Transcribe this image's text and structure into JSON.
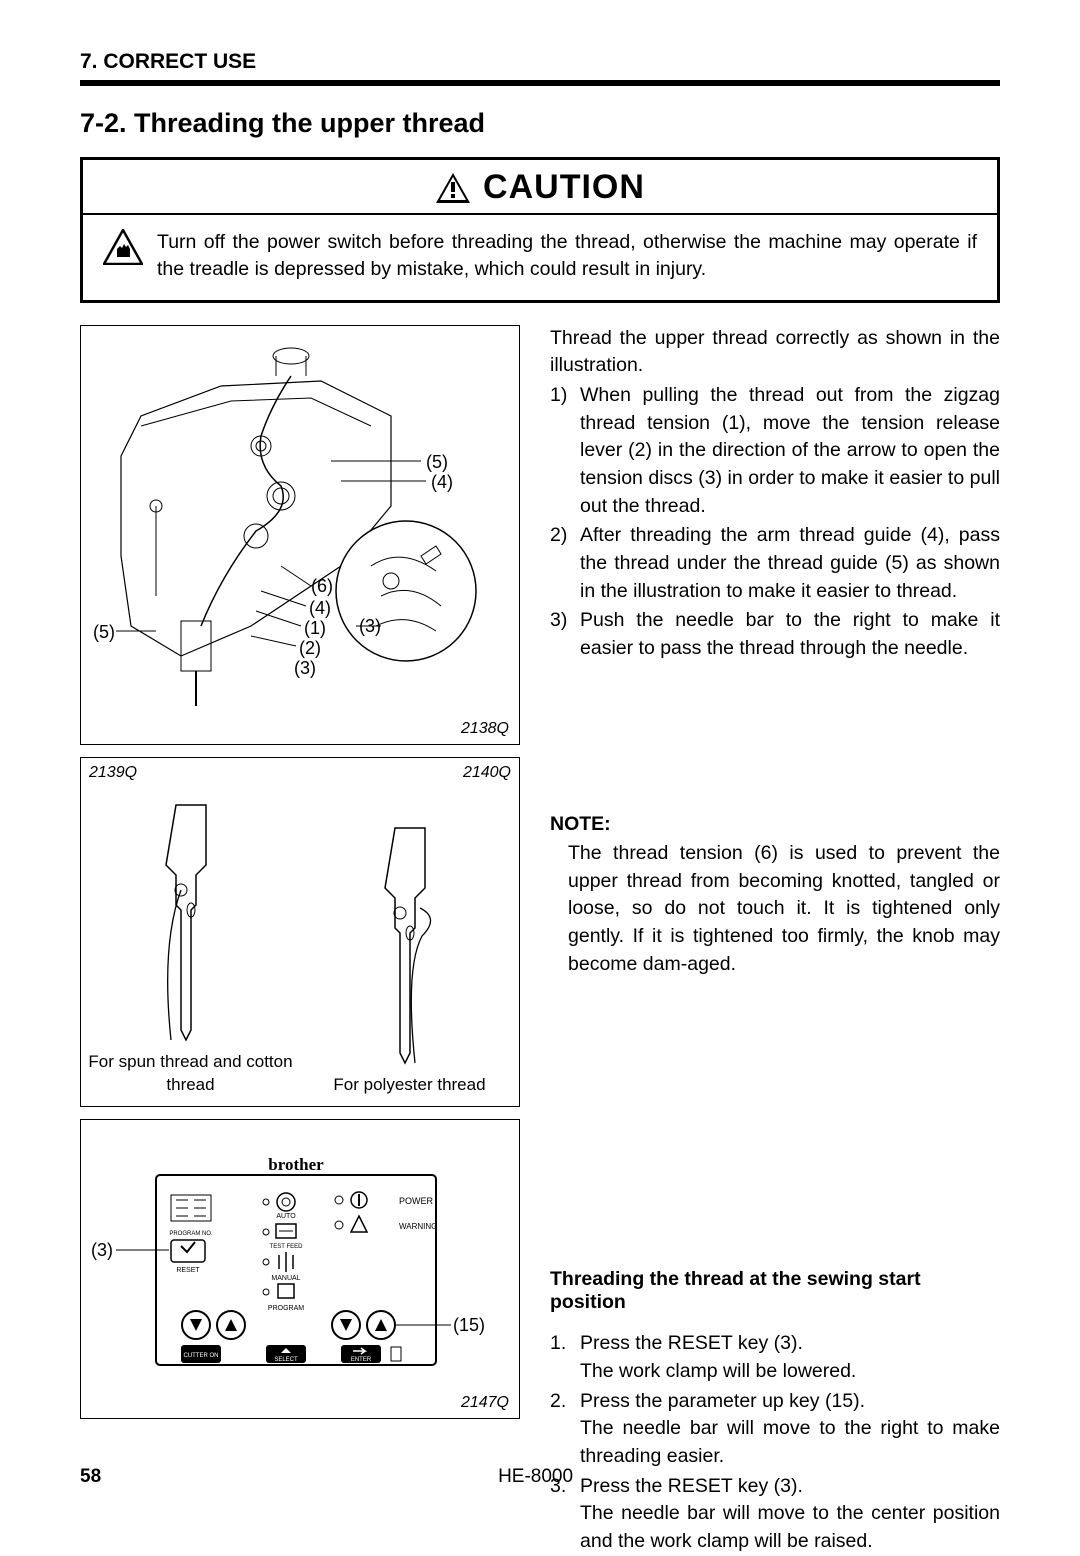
{
  "header": {
    "section": "7. CORRECT USE"
  },
  "subsection": {
    "title": "7-2. Threading the upper thread"
  },
  "caution": {
    "title": "CAUTION",
    "text": "Turn off the power switch before threading the thread, otherwise the machine may operate if the treadle is depressed by mistake, which could result in injury."
  },
  "intro": "Thread the upper thread correctly as shown in the illustration.",
  "steps": [
    {
      "n": "1)",
      "t": "When pulling the thread out from the zigzag thread tension (1), move the tension release lever (2) in the direction of the arrow to open the tension discs (3) in order to make it easier to pull out the thread."
    },
    {
      "n": "2)",
      "t": "After threading the arm thread guide (4), pass the thread under the thread guide (5) as shown in the illustration to make it easier to thread."
    },
    {
      "n": "3)",
      "t": "Push the needle bar to the right to make it easier to pass the thread through the needle."
    }
  ],
  "note": {
    "label": "NOTE:",
    "text": "The thread tension (6) is used to prevent the upper thread from becoming knotted, tangled or loose, so do not touch it. It is tightened only gently. If it is tightened too firmly, the knob may become dam-aged."
  },
  "start_section": {
    "heading": "Threading the thread at the sewing start position",
    "items": [
      {
        "n": "1.",
        "a": "Press the RESET key (3).",
        "b": "The work clamp will be lowered."
      },
      {
        "n": "2.",
        "a": "Press the parameter up key (15).",
        "b": "The needle bar will move to the right to make threading easier."
      },
      {
        "n": "3.",
        "a": "Press the RESET key (3).",
        "b": "The needle bar will move to the center position and the work clamp will be raised."
      }
    ]
  },
  "figures": {
    "main": {
      "code": "2138Q",
      "callouts": [
        "(1)",
        "(2)",
        "(3)",
        "(3)",
        "(4)",
        "(4)",
        "(5)",
        "(5)",
        "(6)"
      ]
    },
    "midL": {
      "code": "2139Q",
      "caption": "For spun thread and cotton thread"
    },
    "midR": {
      "code": "2140Q",
      "caption": "For polyester thread"
    },
    "bot": {
      "code": "2147Q",
      "callouts": [
        "(3)",
        "(15)"
      ],
      "brand": "brother",
      "labels": {
        "reset": "RESET",
        "auto": "AUTO",
        "testfeed": "TEST FEED",
        "manual": "MANUAL",
        "program": "PROGRAM",
        "power": "POWER",
        "warning": "WARNING",
        "select": "SELECT",
        "enter": "ENTER",
        "progno": "PROGRAM NO.",
        "cutteron": "CUTTER ON"
      }
    }
  },
  "footer": {
    "page": "58",
    "model": "HE-8000"
  },
  "colors": {
    "ink": "#000000",
    "paper": "#ffffff"
  }
}
